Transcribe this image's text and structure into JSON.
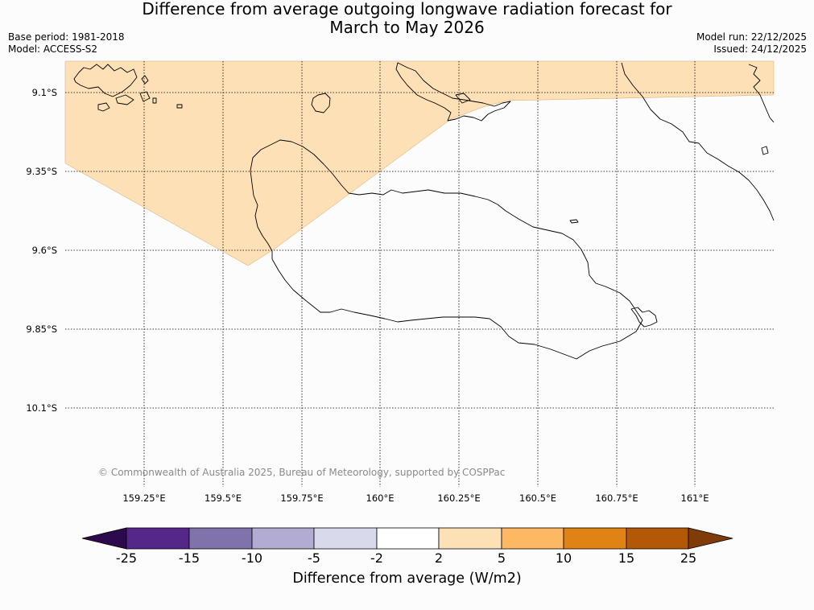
{
  "title": {
    "line1": "Difference from average outgoing longwave radiation forecast for",
    "line2": "March to May 2026"
  },
  "meta": {
    "base_period": "Base period: 1981-2018",
    "model": "Model: ACCESS-S2",
    "model_run": "Model run: 22/12/2025",
    "issued": "Issued: 24/12/2025"
  },
  "map": {
    "lat_labels": [
      "9.1°S",
      "9.35°S",
      "9.6°S",
      "9.85°S",
      "10.1°S"
    ],
    "lon_labels": [
      "159.25°E",
      "159.5°E",
      "159.75°E",
      "160°E",
      "160.25°E",
      "160.5°E",
      "160.75°E",
      "161°E"
    ],
    "region_category": "2 to 5",
    "copyright": "© Commonwealth of Australia 2025, Bureau of Meteorology, supported by COSPPac"
  },
  "colorbar": {
    "title": "Difference from average (W/m2)",
    "ticks": [
      "-25",
      "-15",
      "-10",
      "-5",
      "-2",
      "2",
      "5",
      "10",
      "15",
      "25"
    ],
    "colors": [
      "#2d0a4d",
      "#542788",
      "#8073ac",
      "#b2abd2",
      "#d8daeb",
      "#ffffff",
      "#fee0b6",
      "#fdb863",
      "#e08214",
      "#b35806",
      "#7f3b08"
    ],
    "extend_low_color": "#2d0a4d",
    "extend_high_color": "#7f3b08"
  },
  "colors": {
    "positive_fill": "#fde0b6",
    "coastline": "#000000",
    "grid": "#000000"
  }
}
